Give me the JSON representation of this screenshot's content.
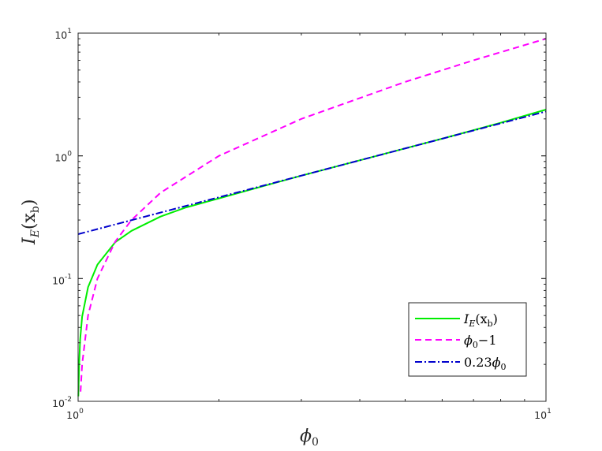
{
  "chart_data": {
    "type": "line",
    "xscale": "log",
    "yscale": "log",
    "xlim": [
      1,
      10
    ],
    "ylim": [
      0.01,
      10
    ],
    "xlabel_main": "ϕ",
    "xlabel_sub": "0",
    "ylabel_main": "I",
    "ylabel_sub": "E",
    "ylabel_arg": "(x",
    "ylabel_arg_sub": "b",
    "ylabel_close": ")",
    "x_ticks": [
      {
        "value": 1,
        "base": "10",
        "exp": "0"
      },
      {
        "value": 10,
        "base": "10",
        "exp": "1"
      }
    ],
    "y_ticks": [
      {
        "value": 0.01,
        "base": "10",
        "exp": "-2"
      },
      {
        "value": 0.1,
        "base": "10",
        "exp": "-1"
      },
      {
        "value": 1,
        "base": "10",
        "exp": "0"
      },
      {
        "value": 10,
        "base": "10",
        "exp": "1"
      }
    ],
    "grid": false,
    "legend_position": "bottom-right",
    "series": [
      {
        "name": "I_E(x_b)",
        "color": "#00ee00",
        "style": "solid",
        "legend": {
          "main": "I",
          "sub": "E",
          "arg": "(x",
          "arg_sub": "b",
          "close": ")"
        },
        "x": [
          1.001,
          1.005,
          1.01,
          1.02,
          1.05,
          1.1,
          1.2,
          1.3,
          1.5,
          1.7,
          2.0,
          2.5,
          3.0,
          4.0,
          5.0,
          6.0,
          7.0,
          8.0,
          10.0
        ],
        "y": [
          0.011,
          0.02,
          0.032,
          0.049,
          0.085,
          0.13,
          0.198,
          0.245,
          0.32,
          0.38,
          0.45,
          0.57,
          0.69,
          0.92,
          1.15,
          1.38,
          1.62,
          1.86,
          2.38
        ]
      },
      {
        "name": "phi_0 - 1",
        "color": "#ff00ff",
        "style": "dashed",
        "legend": {
          "main": "ϕ",
          "sub": "0",
          "rest": "−1"
        },
        "x": [
          1.012,
          1.02,
          1.05,
          1.1,
          1.2,
          1.3,
          1.5,
          2.0,
          3.0,
          5.0,
          7.0,
          10.0
        ],
        "y": [
          0.012,
          0.02,
          0.05,
          0.1,
          0.2,
          0.3,
          0.5,
          1.0,
          2.0,
          4.0,
          6.0,
          9.0
        ]
      },
      {
        "name": "0.23 phi_0",
        "color": "#0000cc",
        "style": "dashdot",
        "legend": {
          "pre": "0.23",
          "main": "ϕ",
          "sub": "0"
        },
        "x": [
          1,
          10
        ],
        "y": [
          0.23,
          2.3
        ]
      }
    ]
  }
}
